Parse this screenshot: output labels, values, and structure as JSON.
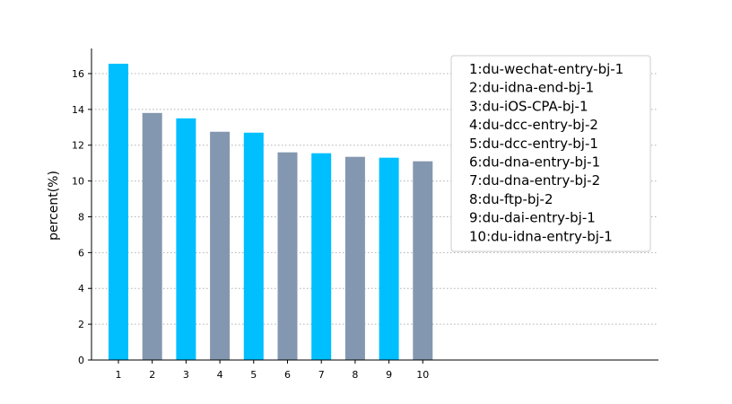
{
  "chart_data": {
    "type": "bar",
    "categories": [
      "1",
      "2",
      "3",
      "4",
      "5",
      "6",
      "7",
      "8",
      "9",
      "10"
    ],
    "values": [
      16.55,
      13.8,
      13.5,
      12.75,
      12.7,
      11.6,
      11.55,
      11.35,
      11.3,
      11.1
    ],
    "title": "",
    "xlabel": "",
    "ylabel": "percent(%)",
    "ylim": [
      0,
      17.4
    ],
    "yticks": [
      0,
      2,
      4,
      6,
      8,
      10,
      12,
      14,
      16
    ],
    "grid": "horizontal dotted",
    "legend_placement": "top-right",
    "legend": [
      "1:du-wechat-entry-bj-1",
      "2:du-idna-end-bj-1",
      "3:du-iOS-CPA-bj-1",
      "4:du-dcc-entry-bj-2",
      "5:du-dcc-entry-bj-1",
      "6:du-dna-entry-bj-1",
      "7:du-dna-entry-bj-2",
      "8:du-ftp-bj-2",
      "9:du-dai-entry-bj-1",
      "10:du-idna-entry-bj-1"
    ],
    "colors": [
      "#00bfff",
      "#8497b0"
    ]
  }
}
